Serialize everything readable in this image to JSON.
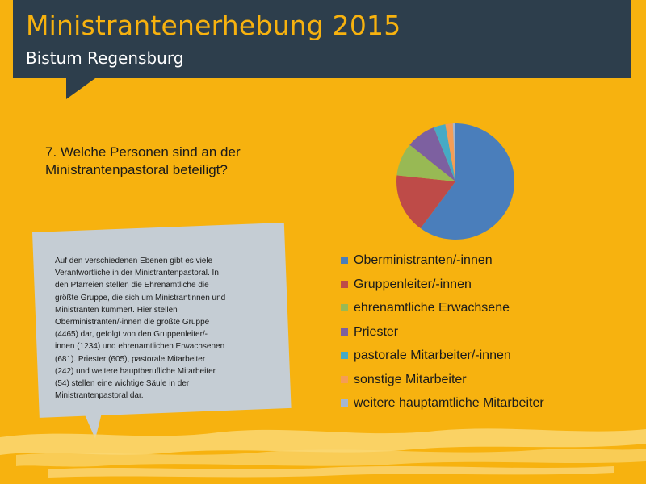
{
  "header": {
    "title": "Ministrantenerhebung 2015",
    "subtitle": "Bistum Regensburg"
  },
  "question": {
    "lines": [
      "7. Welche Personen sind an der",
      "Ministrantenpastoral  beteiligt?"
    ]
  },
  "callout": {
    "lines": [
      "Auf den verschiedenen Ebenen gibt es viele",
      "Verantwortliche in der Ministrantenpastoral. In",
      "den Pfarreien stellen die Ehrenamtliche die",
      "größte Gruppe, die sich um Ministrantinnen und",
      "Ministranten kümmert. Hier stellen",
      "Oberministranten/-innen die größte Gruppe",
      "(4465) dar, gefolgt von den Gruppenleiter/-",
      "innen (1234) und ehrenamtlichen Erwachsenen",
      "(681). Priester (605), pastorale Mitarbeiter",
      "(242) und weitere hauptberufliche Mitarbeiter",
      "(54) stellen eine wichtige Säule in der",
      "Ministrantenpastoral dar."
    ]
  },
  "chart_data": {
    "type": "pie",
    "categories": [
      "Oberministranten/-innen",
      "Gruppenleiter/-innen",
      "ehrenamtliche Erwachsene",
      "Priester",
      "pastorale Mitarbeiter/-innen",
      "sonstige Mitarbeiter",
      "weitere hauptamtliche Mitarbeiter"
    ],
    "values": [
      4465,
      1234,
      681,
      605,
      242,
      150,
      54
    ],
    "colors": [
      "#4A7EBB",
      "#BE4B48",
      "#98B954",
      "#7D60A0",
      "#46AAC5",
      "#F59D56",
      "#A5B6D0"
    ],
    "legend_position": "bottom"
  },
  "colors": {
    "background": "#F7B20F",
    "header": "#2D3E4C",
    "title": "#F7B20F",
    "callout": "#C5CDD4",
    "brush": "#FAD773"
  }
}
